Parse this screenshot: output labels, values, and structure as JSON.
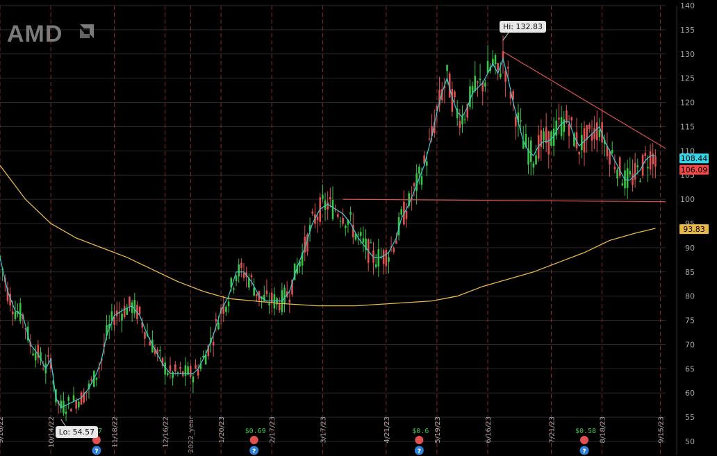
{
  "logo": {
    "text": "AMD"
  },
  "chart_data": {
    "type": "candlestick",
    "ticker": "AMD",
    "y_axis": {
      "ticks": [
        140,
        135,
        130,
        125,
        120,
        115,
        110,
        105,
        100,
        95,
        90,
        85,
        80,
        75,
        70,
        65,
        60,
        55,
        50
      ],
      "ylim": [
        50,
        140
      ]
    },
    "x_axis": {
      "tick_labels": [
        "9/16/22",
        "10/14/22",
        "11/18/22",
        "12/16/22",
        "2022_year",
        "1/20/23",
        "2/17/23",
        "3/17/23",
        "4/21/23",
        "5/19/23",
        "6/16/23",
        "7/21/23",
        "8/18/23",
        "9/15/23"
      ],
      "tick_positions": [
        0,
        20,
        45,
        65,
        75,
        87,
        107,
        127,
        152,
        172,
        192,
        217,
        237,
        260
      ]
    },
    "price_labels": [
      {
        "name": "last-close",
        "value": "108.44",
        "price": 108.44,
        "color": "#35d4e6"
      },
      {
        "name": "last-price",
        "value": "106.09",
        "price": 106.09,
        "color": "#ef4a4a"
      },
      {
        "name": "sma-200",
        "value": "93.83",
        "price": 93.83,
        "color": "#e8b84b"
      }
    ],
    "high_annotation": {
      "text": "Hi: 132.83",
      "price": 132.83,
      "bar": 198
    },
    "low_annotation": {
      "text": "Lo: 54.57",
      "price": 54.57,
      "bar": 24
    },
    "close_path": [
      [
        0,
        88
      ],
      [
        3,
        81
      ],
      [
        6,
        77
      ],
      [
        9,
        76
      ],
      [
        12,
        70
      ],
      [
        15,
        68
      ],
      [
        18,
        65
      ],
      [
        20,
        67
      ],
      [
        22,
        59
      ],
      [
        24,
        57
      ],
      [
        28,
        58
      ],
      [
        32,
        59
      ],
      [
        35,
        61
      ],
      [
        38,
        64
      ],
      [
        40,
        67
      ],
      [
        42,
        72
      ],
      [
        45,
        76
      ],
      [
        48,
        77
      ],
      [
        52,
        78
      ],
      [
        55,
        76
      ],
      [
        58,
        72
      ],
      [
        60,
        70
      ],
      [
        62,
        68
      ],
      [
        64,
        66
      ],
      [
        67,
        64
      ],
      [
        70,
        64
      ],
      [
        73,
        64
      ],
      [
        76,
        64
      ],
      [
        78,
        65
      ],
      [
        81,
        68
      ],
      [
        84,
        72
      ],
      [
        87,
        77
      ],
      [
        90,
        80
      ],
      [
        93,
        85
      ],
      [
        96,
        85
      ],
      [
        99,
        83
      ],
      [
        102,
        80
      ],
      [
        105,
        79
      ],
      [
        108,
        79
      ],
      [
        111,
        79
      ],
      [
        114,
        81
      ],
      [
        117,
        86
      ],
      [
        120,
        90
      ],
      [
        123,
        95
      ],
      [
        126,
        98
      ],
      [
        129,
        99
      ],
      [
        132,
        98
      ],
      [
        135,
        97
      ],
      [
        138,
        95
      ],
      [
        141,
        92
      ],
      [
        144,
        90
      ],
      [
        147,
        88
      ],
      [
        150,
        88
      ],
      [
        153,
        89
      ],
      [
        156,
        92
      ],
      [
        158,
        96
      ],
      [
        161,
        99
      ],
      [
        164,
        103
      ],
      [
        167,
        107
      ],
      [
        170,
        113
      ],
      [
        172,
        118
      ],
      [
        174,
        122
      ],
      [
        176,
        125
      ],
      [
        178,
        121
      ],
      [
        180,
        118
      ],
      [
        182,
        117
      ],
      [
        184,
        119
      ],
      [
        186,
        122
      ],
      [
        188,
        123
      ],
      [
        190,
        124
      ],
      [
        192,
        126
      ],
      [
        194,
        128
      ],
      [
        196,
        126
      ],
      [
        198,
        129
      ],
      [
        200,
        125
      ],
      [
        202,
        120
      ],
      [
        204,
        116
      ],
      [
        206,
        112
      ],
      [
        208,
        110
      ],
      [
        210,
        109
      ],
      [
        212,
        111
      ],
      [
        214,
        112
      ],
      [
        216,
        112
      ],
      [
        218,
        113
      ],
      [
        220,
        115
      ],
      [
        222,
        116
      ],
      [
        224,
        116
      ],
      [
        226,
        113
      ],
      [
        228,
        111
      ],
      [
        230,
        112
      ],
      [
        232,
        113
      ],
      [
        234,
        114
      ],
      [
        236,
        115
      ],
      [
        238,
        112
      ],
      [
        240,
        110
      ],
      [
        242,
        108
      ],
      [
        244,
        106
      ],
      [
        246,
        104
      ],
      [
        248,
        104
      ],
      [
        250,
        105
      ],
      [
        252,
        106
      ],
      [
        254,
        108
      ],
      [
        256,
        109
      ],
      [
        258,
        109
      ]
    ],
    "sma200_path": [
      [
        0,
        107
      ],
      [
        10,
        100
      ],
      [
        20,
        95
      ],
      [
        30,
        92
      ],
      [
        40,
        90
      ],
      [
        50,
        88
      ],
      [
        60,
        85.5
      ],
      [
        70,
        83
      ],
      [
        80,
        81
      ],
      [
        90,
        79.5
      ],
      [
        100,
        79
      ],
      [
        110,
        78.5
      ],
      [
        125,
        78
      ],
      [
        140,
        78
      ],
      [
        155,
        78.5
      ],
      [
        170,
        79
      ],
      [
        180,
        80
      ],
      [
        190,
        82
      ],
      [
        200,
        83.5
      ],
      [
        210,
        85
      ],
      [
        220,
        87
      ],
      [
        230,
        89
      ],
      [
        240,
        91.5
      ],
      [
        250,
        93
      ],
      [
        258,
        94
      ]
    ],
    "trendlines": [
      {
        "name": "descending-resistance",
        "from": [
          198,
          130.5
        ],
        "to": [
          262,
          110.5
        ],
        "color": "#e05252"
      },
      {
        "name": "horizontal-support",
        "from": [
          135,
          100
        ],
        "to": [
          262,
          99.5
        ],
        "color": "#e05252"
      }
    ],
    "event_markers": [
      {
        "bar": 38,
        "dividend": "57",
        "color": "#e05252"
      },
      {
        "bar": 100,
        "dividend": "$0.69",
        "color": "#e05252"
      },
      {
        "bar": 165,
        "dividend": "$0.6",
        "color": "#e05252"
      },
      {
        "bar": 230,
        "dividend": "$0.58",
        "color": "#e05252"
      }
    ],
    "colors": {
      "up": "#38c646",
      "down": "#e05252",
      "ma_short": "#3ec8d8",
      "sma200": "#e8b84b",
      "grid": "#2a2a2a",
      "vgrid": "#8a2a2a",
      "axis_text": "#a8a8a8"
    }
  }
}
